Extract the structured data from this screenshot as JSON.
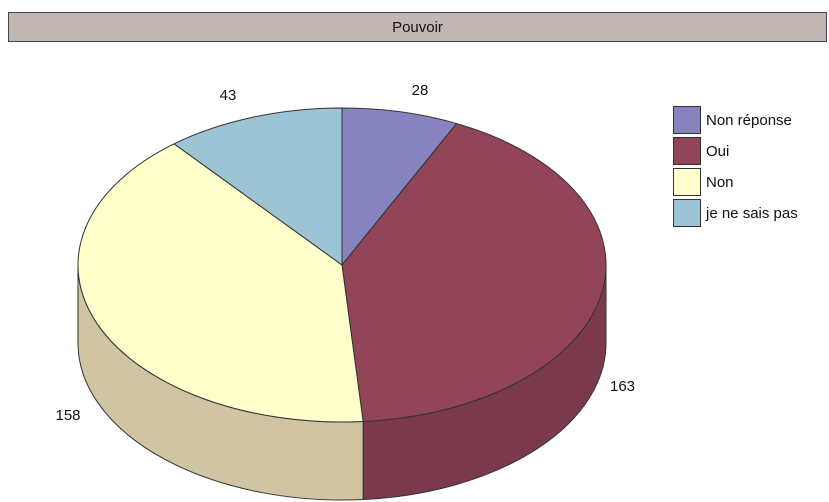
{
  "chart_data": {
    "type": "pie",
    "title": "Pouvoir",
    "categories": [
      "Non réponse",
      "Oui",
      "Non",
      "je ne sais pas"
    ],
    "values": [
      28,
      163,
      158,
      43
    ],
    "colors": [
      "#8783bf",
      "#924459",
      "#ffffcb",
      "#9dc4d5"
    ],
    "side_colors": [
      "#6f6b9f",
      "#7a3a4c",
      "#d0c4a2",
      "#7ea0b0"
    ],
    "legend": "right",
    "three_d": true
  }
}
